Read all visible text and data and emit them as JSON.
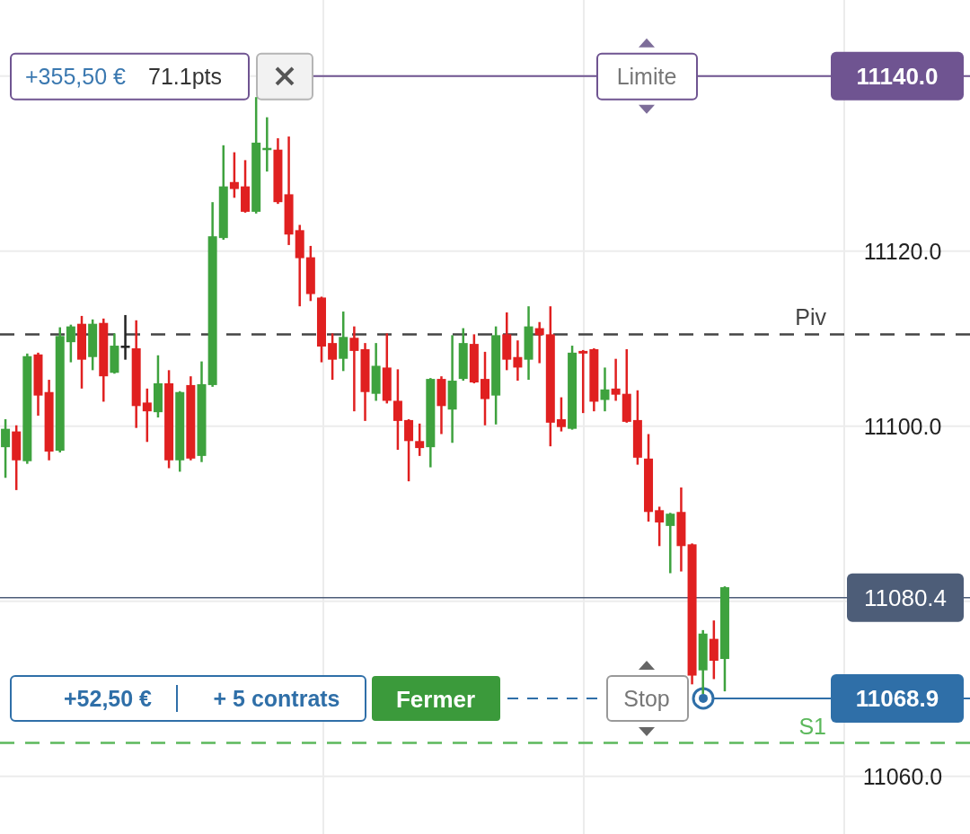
{
  "chart_data": {
    "type": "candlestick",
    "categories": [
      null,
      null,
      null,
      null,
      null,
      null,
      null,
      null,
      null,
      null,
      null,
      null,
      null,
      null,
      null,
      null,
      null,
      null,
      null,
      null,
      null,
      null,
      null,
      null,
      null,
      null,
      null,
      null,
      null,
      null,
      null,
      null,
      null,
      null,
      null,
      null,
      null,
      null,
      null,
      null,
      null,
      null,
      null,
      null,
      null,
      null,
      null,
      null,
      null,
      null,
      null,
      null,
      null,
      null,
      null,
      null,
      null,
      null,
      null,
      null,
      null,
      null,
      null,
      null,
      null,
      null,
      null,
      null,
      null,
      null,
      null,
      null,
      null,
      null,
      null,
      null,
      null,
      null,
      null,
      null,
      null,
      null,
      null,
      null,
      null,
      null,
      null,
      null,
      null
    ],
    "ohlc": [
      [
        11097.6,
        11100.8,
        11094.1,
        11099.7
      ],
      [
        11099.4,
        11100.1,
        11092.7,
        11096.1
      ],
      [
        11096.0,
        11108.3,
        11095.7,
        11108.0
      ],
      [
        11108.2,
        11108.4,
        11101.2,
        11103.5
      ],
      [
        11103.9,
        11105.3,
        11096.1,
        11097.1
      ],
      [
        11097.2,
        11111.3,
        11097.0,
        11110.3
      ],
      [
        11109.6,
        11111.6,
        11107.3,
        11111.4
      ],
      [
        11111.7,
        11112.6,
        11104.3,
        11107.6
      ],
      [
        11107.9,
        11112.2,
        11106.4,
        11111.7
      ],
      [
        11111.8,
        11112.3,
        11102.8,
        11105.7
      ],
      [
        11106.1,
        11110.6,
        11106.0,
        11109.2
      ],
      [
        11109.2,
        11112.7,
        11107.6,
        11109.2
      ],
      [
        11108.9,
        11112.1,
        11099.8,
        11102.3
      ],
      [
        11102.7,
        11104.3,
        11098.2,
        11101.7
      ],
      [
        11101.6,
        11108.1,
        11101.0,
        11104.9
      ],
      [
        11104.9,
        11106.4,
        11095.2,
        11096.1
      ],
      [
        11096.1,
        11104.0,
        11094.8,
        11103.9
      ],
      [
        11104.7,
        11105.7,
        11096.1,
        11096.3
      ],
      [
        11096.6,
        11107.4,
        11095.9,
        11104.8
      ],
      [
        11104.7,
        11125.6,
        11104.5,
        11121.7
      ],
      [
        11121.5,
        11132.1,
        11121.3,
        11127.4
      ],
      [
        11127.9,
        11131.3,
        11126.1,
        11127.1
      ],
      [
        11127.4,
        11130.4,
        11124.4,
        11124.5
      ],
      [
        11124.5,
        11137.6,
        11124.3,
        11132.4
      ],
      [
        11131.6,
        11135.3,
        11129.1,
        11131.8
      ],
      [
        11131.6,
        11132.9,
        11125.4,
        11125.6
      ],
      [
        11126.5,
        11133.1,
        11120.7,
        11121.9
      ],
      [
        11122.4,
        11123.0,
        11113.7,
        11119.2
      ],
      [
        11119.3,
        11120.6,
        11114.3,
        11115.1
      ],
      [
        11114.7,
        11114.8,
        11107.3,
        11109.1
      ],
      [
        11109.5,
        11110.6,
        11105.3,
        11107.6
      ],
      [
        11107.7,
        11113.1,
        11106.3,
        11110.2
      ],
      [
        11110.1,
        11111.4,
        11101.7,
        11108.6
      ],
      [
        11108.8,
        11109.5,
        11100.6,
        11103.9
      ],
      [
        11103.7,
        11109.5,
        11102.9,
        11106.9
      ],
      [
        11106.7,
        11110.6,
        11102.6,
        11102.9
      ],
      [
        11102.9,
        11106.5,
        11097.3,
        11100.6
      ],
      [
        11100.7,
        11100.8,
        11093.7,
        11098.3
      ],
      [
        11098.3,
        11100.3,
        11096.6,
        11097.5
      ],
      [
        11097.6,
        11105.5,
        11095.3,
        11105.4
      ],
      [
        11105.4,
        11105.7,
        11099.1,
        11102.3
      ],
      [
        11101.9,
        11110.4,
        11098.1,
        11105.2
      ],
      [
        11105.4,
        11111.2,
        11105.2,
        11109.5
      ],
      [
        11109.4,
        11110.5,
        11104.9,
        11105.0
      ],
      [
        11105.4,
        11108.5,
        11100.1,
        11103.1
      ],
      [
        11103.5,
        11111.4,
        11100.2,
        11110.4
      ],
      [
        11110.5,
        11113.0,
        11106.4,
        11107.6
      ],
      [
        11107.9,
        11109.8,
        11105.2,
        11106.7
      ],
      [
        11107.6,
        11113.7,
        11105.3,
        11111.4
      ],
      [
        11111.2,
        11111.9,
        11107.2,
        11110.4
      ],
      [
        11110.5,
        11113.7,
        11097.7,
        11100.4
      ],
      [
        11100.8,
        11103.3,
        11099.4,
        11099.9
      ],
      [
        11099.7,
        11109.2,
        11099.6,
        11108.4
      ],
      [
        11108.6,
        11108.7,
        11101.5,
        11108.3
      ],
      [
        11108.8,
        11108.9,
        11101.7,
        11102.8
      ],
      [
        11103.0,
        11106.7,
        11101.7,
        11104.2
      ],
      [
        11104.3,
        11107.7,
        11102.9,
        11103.6
      ],
      [
        11103.7,
        11108.8,
        11100.4,
        11100.5
      ],
      [
        11100.7,
        11104.1,
        11095.6,
        11096.4
      ],
      [
        11096.3,
        11099.1,
        11089.1,
        11090.2
      ],
      [
        11090.4,
        11090.8,
        11086.3,
        11089.0
      ],
      [
        11088.6,
        11090.1,
        11083.2,
        11090.0
      ],
      [
        11090.2,
        11093.0,
        11083.4,
        11086.3
      ],
      [
        11086.5,
        11086.6,
        11070.5,
        11071.5
      ],
      [
        11072.1,
        11076.7,
        11069.4,
        11076.3
      ],
      [
        11075.7,
        11077.8,
        11071.1,
        11073.2
      ],
      [
        11073.4,
        11081.7,
        11069.7,
        11081.6
      ],
      null,
      null,
      null,
      null,
      null,
      null,
      null,
      null,
      null,
      null,
      null,
      null,
      null,
      null,
      null,
      null,
      null,
      null,
      null,
      null,
      null,
      null
    ],
    "ylim": [
      11053.4,
      11148.7
    ],
    "yticks": [
      {
        "value": 11140,
        "label": null
      },
      {
        "value": 11120,
        "label": "11120.0"
      },
      {
        "value": 11100,
        "label": "11100.0"
      },
      {
        "value": 11080,
        "label": null
      },
      {
        "value": 11060,
        "label": "11060.0"
      }
    ],
    "grid": true,
    "ref_lines": [
      {
        "axis": "y",
        "value": 11140.0,
        "label": "11140.0",
        "color": "#6f5491"
      },
      {
        "axis": "y",
        "value": 11110.5,
        "label": "Piv",
        "color": "#444444",
        "line_style": "dashed"
      },
      {
        "axis": "y",
        "value": 11080.4,
        "label": "11080.4",
        "color": "#4d5d78"
      },
      {
        "axis": "y",
        "value": 11068.9,
        "label": "11068.9",
        "color": "#2f6fa8"
      },
      {
        "axis": "y",
        "value": 11063.8,
        "label": "S1",
        "color": "#5cb85c",
        "line_style": "dashed"
      }
    ],
    "annotations": [
      "+355,50 €",
      "71.1pts",
      "Limite",
      "+52,50 €",
      "+ 5 contrats",
      "Fermer",
      "Stop"
    ]
  }
}
